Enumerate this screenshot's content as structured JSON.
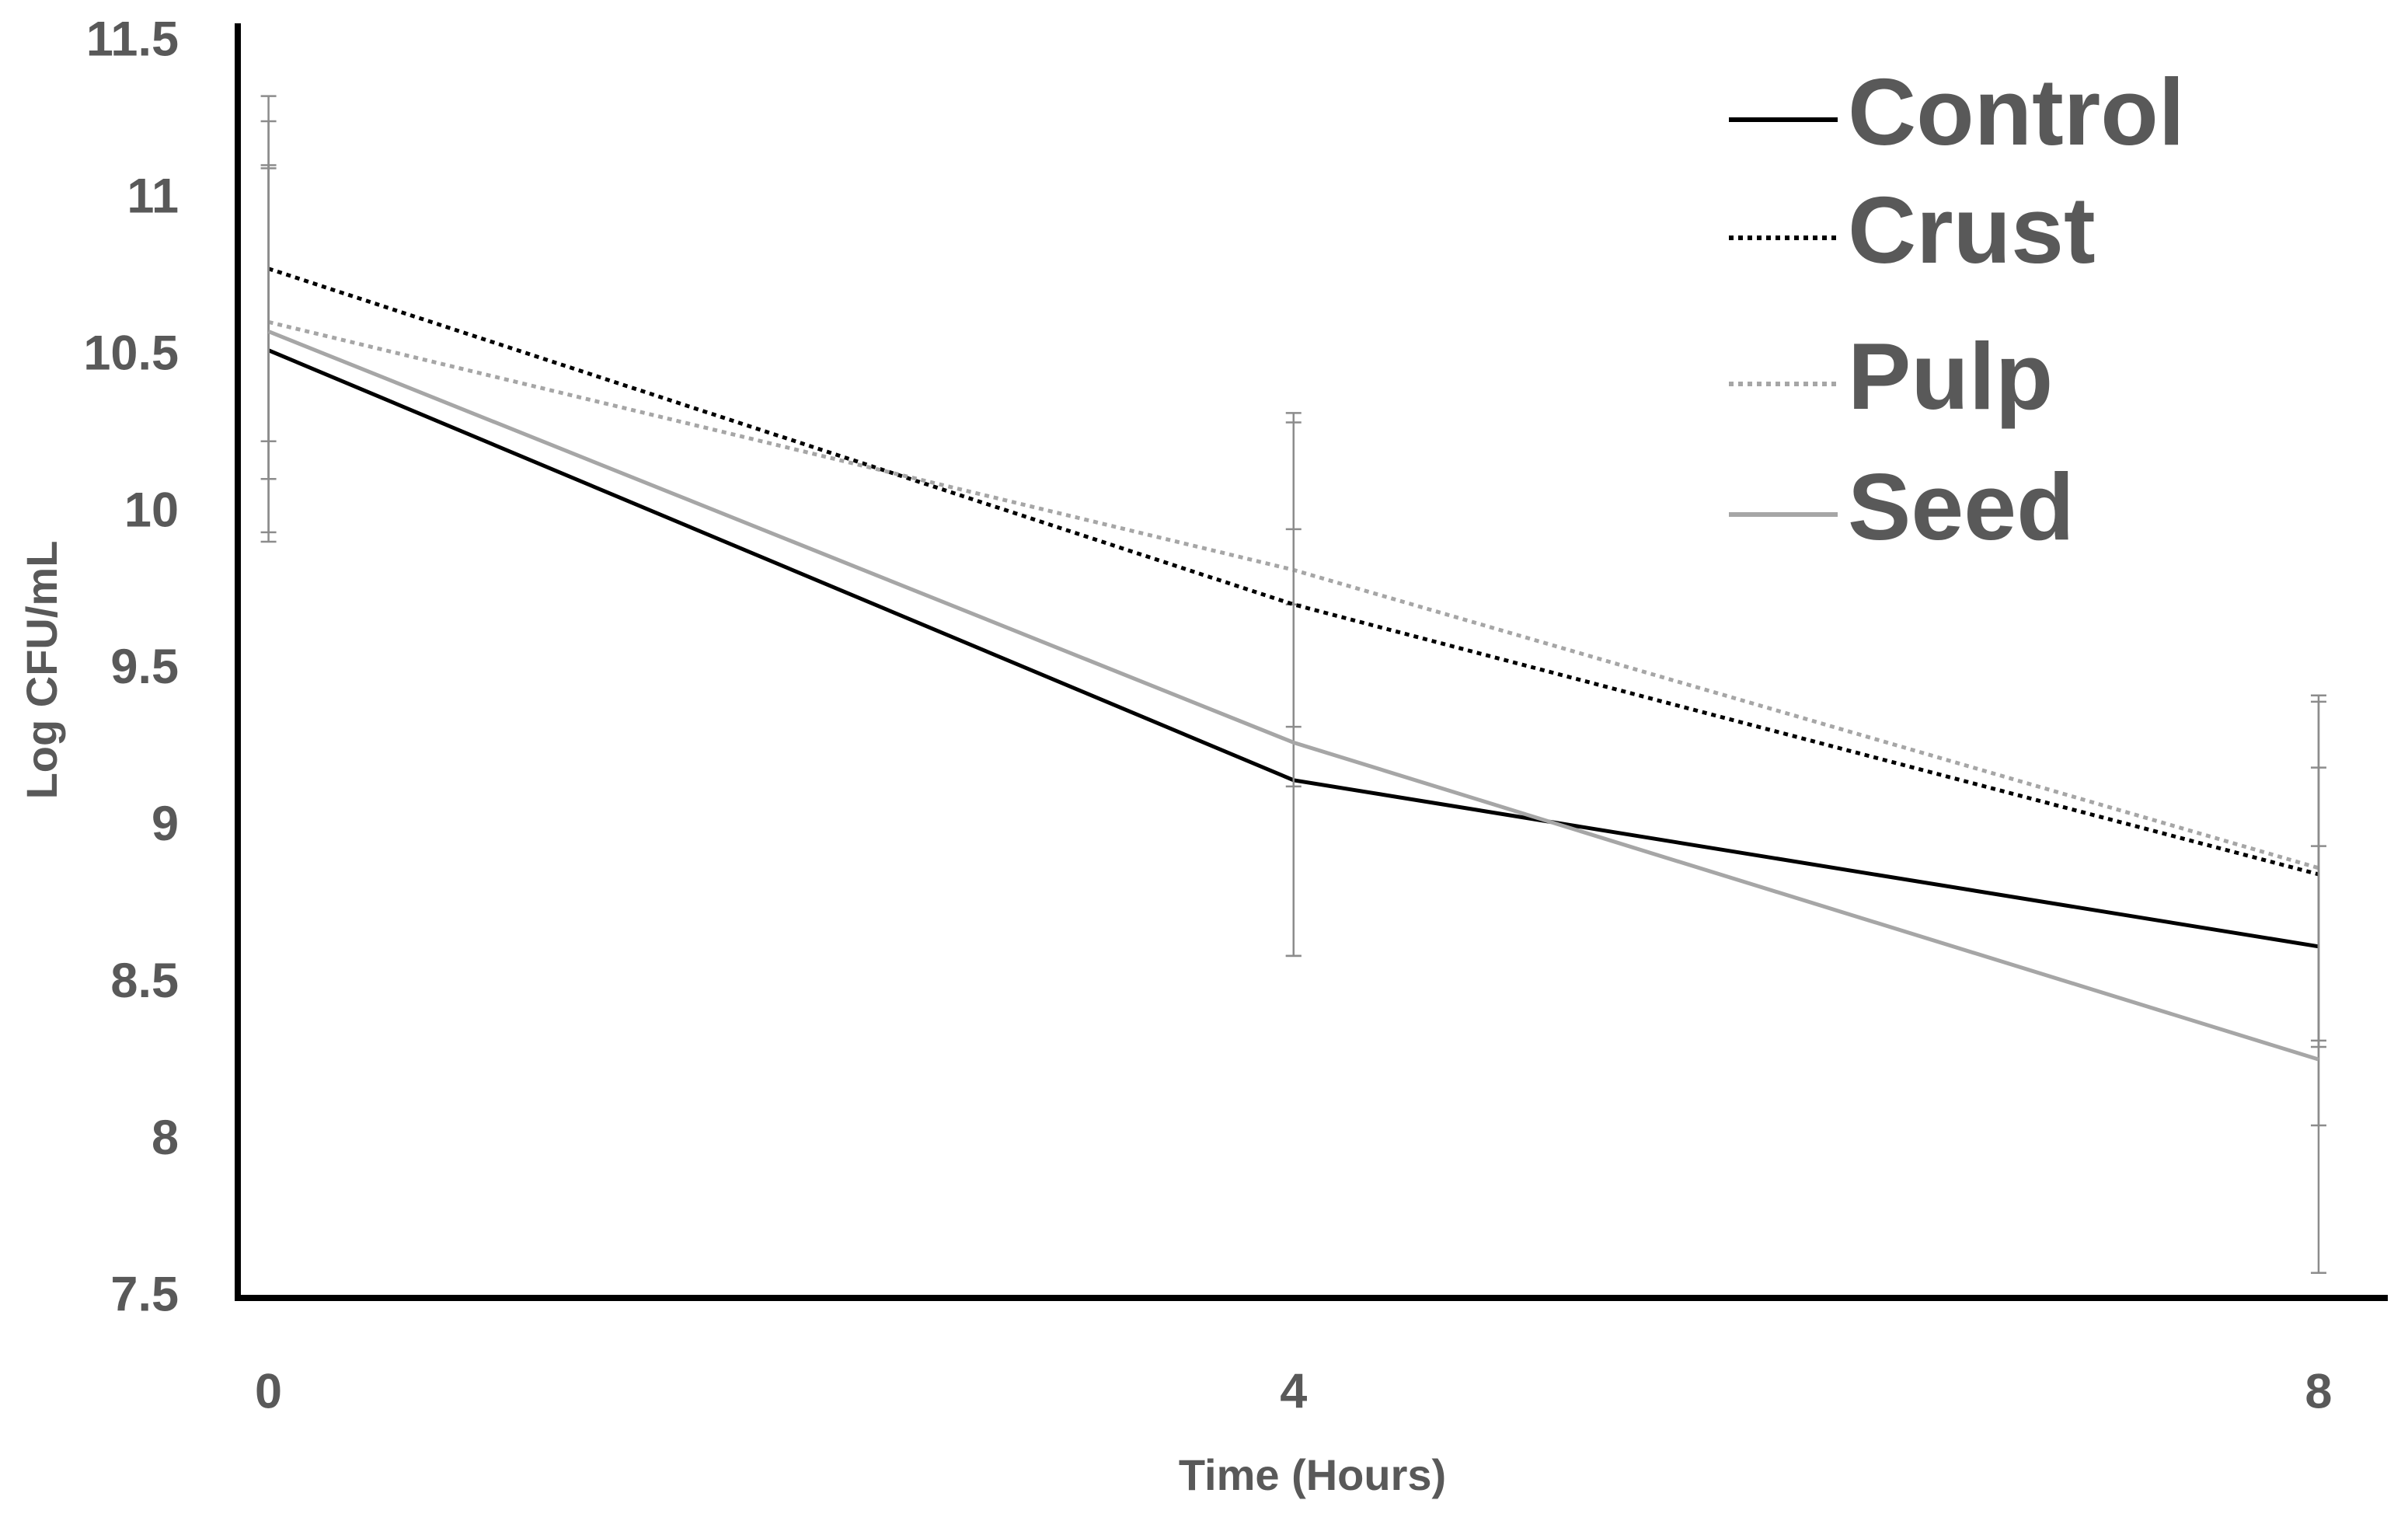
{
  "chart_data": {
    "type": "line",
    "x_label": "Time (Hours)",
    "y_label": "Log CFU/mL",
    "x": [
      0,
      4,
      8
    ],
    "series": [
      {
        "name": "Control",
        "color": "#000000",
        "style": "solid",
        "values": [
          10.52,
          9.15,
          8.62
        ],
        "errors": [
          0.58,
          0.56,
          0.57
        ]
      },
      {
        "name": "Crust",
        "color": "#000000",
        "style": "dotted",
        "values": [
          10.78,
          9.71,
          8.85
        ],
        "errors": [
          0.55,
          0.58,
          0.55
        ]
      },
      {
        "name": "Pulp",
        "color": "#a6a6a6",
        "style": "dotted",
        "values": [
          10.61,
          9.82,
          8.87
        ],
        "errors": [
          0.5,
          0.5,
          0.55
        ]
      },
      {
        "name": "Seed",
        "color": "#a6a6a6",
        "style": "solid",
        "values": [
          10.58,
          9.27,
          8.26
        ],
        "errors": [
          0.67,
          0.68,
          0.68
        ]
      }
    ],
    "xlim": [
      -0.12,
      8.27
    ],
    "ylim": [
      7.5,
      11.5
    ],
    "xticks": [
      0,
      4,
      8
    ],
    "yticks": [
      7.5,
      8,
      8.5,
      9,
      9.5,
      10,
      10.5,
      11,
      11.5
    ],
    "grid": false,
    "legend": "upper right",
    "error_color": "#8c8c8c"
  }
}
